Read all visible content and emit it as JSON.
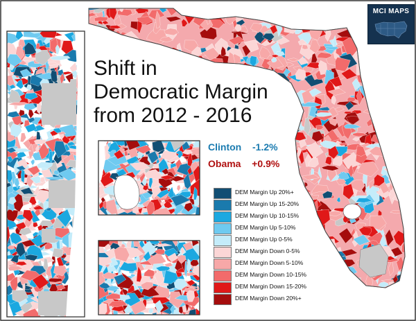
{
  "title": {
    "line1": "Shift in",
    "line2": "Democratic Margin",
    "line3": "from 2012 - 2016"
  },
  "results": [
    {
      "label": "Clinton",
      "value": "-1.2%",
      "color": "#1a7bb0"
    },
    {
      "label": "Obama",
      "value": "+0.9%",
      "color": "#b01010"
    }
  ],
  "legend": [
    {
      "label": "DEM Margin Up 20%+",
      "color": "#114e73"
    },
    {
      "label": "DEM Margin Up 15-20%",
      "color": "#1a7aad"
    },
    {
      "label": "DEM Margin Up 10-15%",
      "color": "#1ba8e0"
    },
    {
      "label": "DEM Margin Up 5-10%",
      "color": "#6fcaf0"
    },
    {
      "label": "DEM Margin Up 0-5%",
      "color": "#c4ecfa"
    },
    {
      "label": "DEM Margin Down 0-5%",
      "color": "#fbd6d6"
    },
    {
      "label": "DEM Margin Down 5-10%",
      "color": "#f7a8a8"
    },
    {
      "label": "DEM Margin Down 10-15%",
      "color": "#f26b6b"
    },
    {
      "label": "DEM Margin Down 15-20%",
      "color": "#e01818"
    },
    {
      "label": "DEM Margin Down 20%+",
      "color": "#a50d0d"
    }
  ],
  "logo": {
    "text": "MCI MAPS",
    "background": "#15324f"
  },
  "colors": {
    "no_data": "#c8c8c8",
    "water": "#ffffff",
    "frame": "#333333"
  }
}
